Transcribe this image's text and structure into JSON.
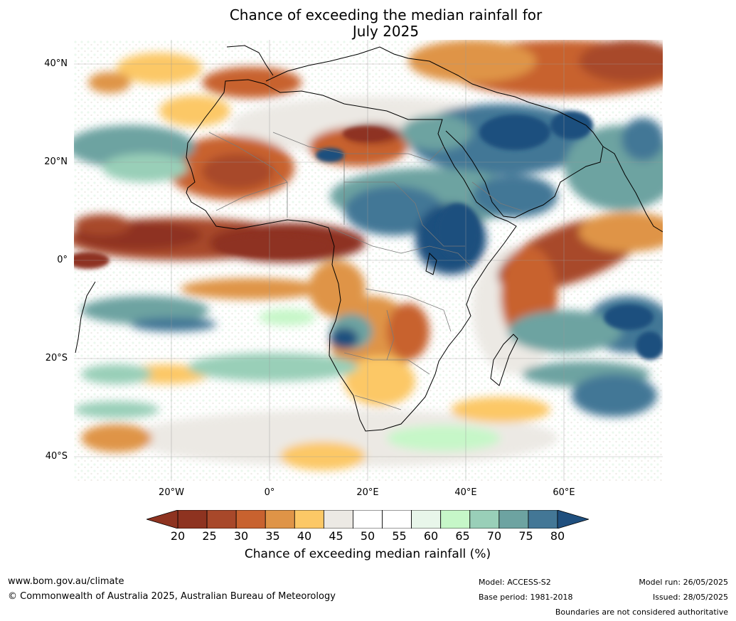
{
  "title_line1": "Chance of exceeding the median rainfall for",
  "title_line2": "July 2025",
  "lat_labels": [
    "40°N",
    "20°N",
    "0°",
    "20°S",
    "40°S"
  ],
  "lon_labels": [
    "20°W",
    "0°",
    "20°E",
    "40°E",
    "60°E"
  ],
  "colorbar": {
    "ticks": [
      "20",
      "25",
      "30",
      "35",
      "40",
      "45",
      "50",
      "55",
      "60",
      "65",
      "70",
      "75",
      "80"
    ],
    "colors": [
      "#8e3320",
      "#a8482a",
      "#c8622f",
      "#df9447",
      "#fcc866",
      "#ece9e4",
      "#ffffff",
      "#ffffff",
      "#e8f6ea",
      "#c6f7c8",
      "#99cfb8",
      "#6da3a1",
      "#437796"
    ],
    "under_color": "#8e3320",
    "over_color": "#1f4f7e",
    "label": "Chance of exceeding median rainfall (%)"
  },
  "footer": {
    "website": "www.bom.gov.au/climate",
    "copyright": "© Commonwealth of Australia 2025, Australian Bureau of Meteorology",
    "model": "Model: ACCESS-S2",
    "base_period": "Base period: 1981-2018",
    "model_run": "Model run: 26/05/2025",
    "issued": "Issued: 28/05/2025",
    "disclaimer": "Boundaries are not considered authoritative"
  }
}
